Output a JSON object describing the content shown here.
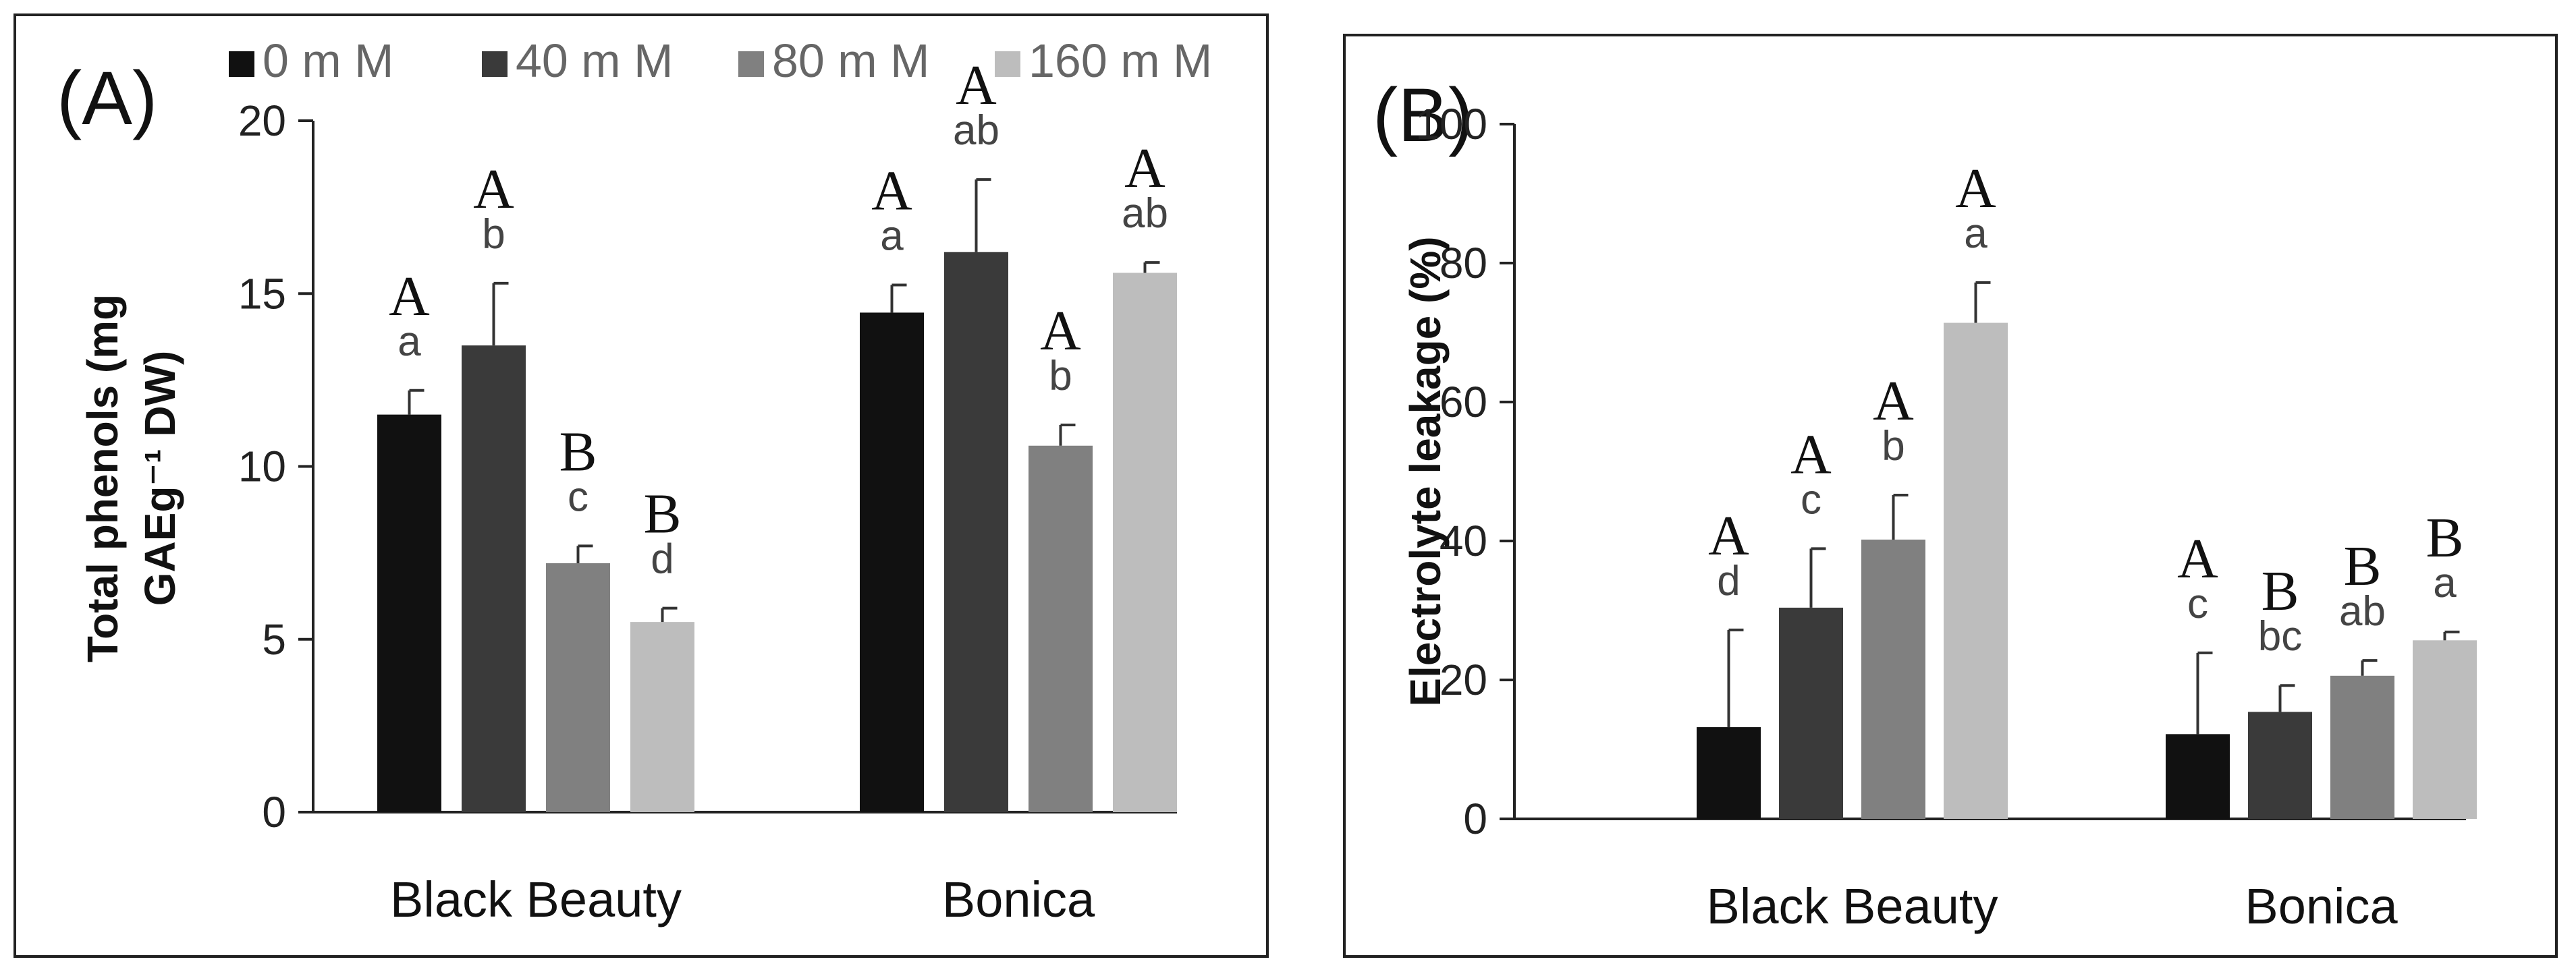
{
  "chart_data": [
    {
      "type": "bar",
      "panel_label": "(A)",
      "categories": [
        "Black Beauty",
        "Bonica"
      ],
      "series": [
        {
          "name": "0 m M",
          "color": "#111111",
          "values": [
            11.5,
            14.45
          ],
          "errors": [
            0.7,
            0.8
          ]
        },
        {
          "name": "40 m M",
          "color": "#3a3a3a",
          "values": [
            13.5,
            16.2
          ],
          "errors": [
            1.8,
            2.1
          ]
        },
        {
          "name": "80 m M",
          "color": "#808080",
          "values": [
            7.2,
            10.6
          ],
          "errors": [
            0.5,
            0.6
          ]
        },
        {
          "name": "160 m M",
          "color": "#bdbdbd",
          "values": [
            5.5,
            15.6
          ],
          "errors": [
            0.4,
            0.3
          ]
        }
      ],
      "letters_lower": [
        [
          "a",
          "a"
        ],
        [
          "b",
          "ab"
        ],
        [
          "c",
          "b"
        ],
        [
          "d",
          "ab"
        ]
      ],
      "letters_upper": [
        [
          "A",
          "A"
        ],
        [
          "A",
          "A"
        ],
        [
          "B",
          "A"
        ],
        [
          "B",
          "A"
        ]
      ],
      "ylabel_line1": "Total phenols  (mg",
      "ylabel_line2": "GAEg⁻¹ DW)",
      "ylim": [
        0,
        20
      ],
      "yticks": [
        "0",
        "5",
        "10",
        "15",
        "20"
      ],
      "legend_position": "top"
    },
    {
      "type": "bar",
      "panel_label": "(B)",
      "categories": [
        "Black Beauty",
        "Bonica"
      ],
      "series": [
        {
          "name": "0 m M",
          "color": "#111111",
          "values": [
            13.2,
            12.2
          ],
          "errors": [
            14.0,
            11.7
          ]
        },
        {
          "name": "40 m M",
          "color": "#3a3a3a",
          "values": [
            30.4,
            15.4
          ],
          "errors": [
            8.5,
            3.8
          ]
        },
        {
          "name": "80 m M",
          "color": "#808080",
          "values": [
            40.2,
            20.6
          ],
          "errors": [
            6.4,
            2.2
          ]
        },
        {
          "name": "160 m M",
          "color": "#bdbdbd",
          "values": [
            71.4,
            25.7
          ],
          "errors": [
            5.8,
            1.2
          ]
        }
      ],
      "letters_lower": [
        [
          "d",
          "c"
        ],
        [
          "c",
          "bc"
        ],
        [
          "b",
          "ab"
        ],
        [
          "a",
          "a"
        ]
      ],
      "letters_upper": [
        [
          "A",
          "A"
        ],
        [
          "A",
          "B"
        ],
        [
          "A",
          "B"
        ],
        [
          "A",
          "B"
        ]
      ],
      "ylabel_line1": "Electrolyte leakage (%)",
      "ylim": [
        0,
        100
      ],
      "yticks": [
        "0",
        "20",
        "40",
        "60",
        "80",
        "100"
      ]
    }
  ]
}
